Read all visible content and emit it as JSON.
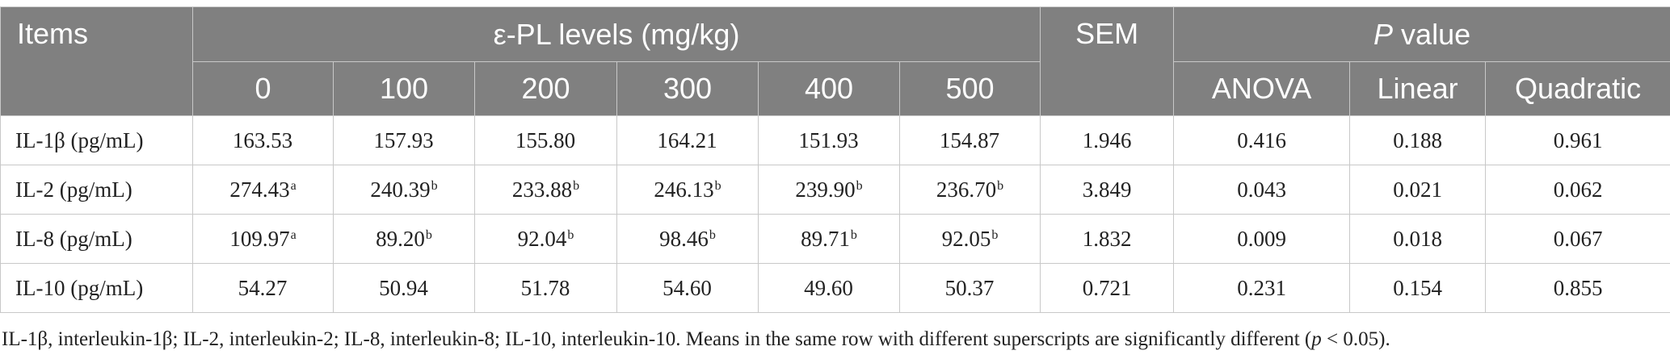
{
  "header": {
    "items": "Items",
    "group_epl": "ε-PL levels (mg/kg)",
    "sem": "SEM",
    "group_p_italic": "P",
    "group_p_rest": " value",
    "levels": [
      "0",
      "100",
      "200",
      "300",
      "400",
      "500"
    ],
    "tests": [
      "ANOVA",
      "Linear",
      "Quadratic"
    ]
  },
  "rows": [
    {
      "label": "IL-1β (pg/mL)",
      "values": [
        "163.53",
        "157.93",
        "155.80",
        "164.21",
        "151.93",
        "154.87"
      ],
      "sups": [
        "",
        "",
        "",
        "",
        "",
        ""
      ],
      "sem": "1.946",
      "anova": "0.416",
      "linear": "0.188",
      "quadratic": "0.961"
    },
    {
      "label": "IL-2 (pg/mL)",
      "values": [
        "274.43",
        "240.39",
        "233.88",
        "246.13",
        "239.90",
        "236.70"
      ],
      "sups": [
        "a",
        "b",
        "b",
        "b",
        "b",
        "b"
      ],
      "sem": "3.849",
      "anova": "0.043",
      "linear": "0.021",
      "quadratic": "0.062"
    },
    {
      "label": "IL-8 (pg/mL)",
      "values": [
        "109.97",
        "89.20",
        "92.04",
        "98.46",
        "89.71",
        "92.05"
      ],
      "sups": [
        "a",
        "b",
        "b",
        "b",
        "b",
        "b"
      ],
      "sem": "1.832",
      "anova": "0.009",
      "linear": "0.018",
      "quadratic": "0.067"
    },
    {
      "label": "IL-10 (pg/mL)",
      "values": [
        "54.27",
        "50.94",
        "51.78",
        "54.60",
        "49.60",
        "50.37"
      ],
      "sups": [
        "",
        "",
        "",
        "",
        "",
        ""
      ],
      "sem": "0.721",
      "anova": "0.231",
      "linear": "0.154",
      "quadratic": "0.855"
    }
  ],
  "footnote": {
    "pre": "IL-1β, interleukin-1β; IL-2, interleukin-2; IL-8, interleukin-8; IL-10, interleukin-10. Means in the same row with different superscripts are significantly different (",
    "p_italic": "p",
    "post": " < 0.05)."
  }
}
